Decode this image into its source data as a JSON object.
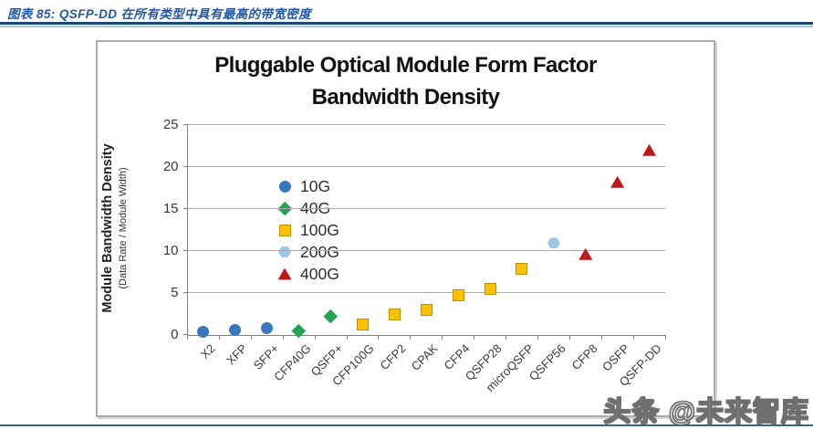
{
  "page": {
    "caption": "图表 85:  QSFP-DD 在所有类型中具有最高的带宽密度",
    "watermark": "头条 @未来智库"
  },
  "colors": {
    "caption_blue": "#2057A7",
    "rule_dark": "#1B4677",
    "rule_light": "#A9CBEC",
    "rule_bottom": "#37629B",
    "gridline": "#ABABAB",
    "axis": "#7F7F7F",
    "series_10g": "#3878BE",
    "series_40g": "#21A352",
    "series_100g_fill": "#FFC000",
    "series_100g_border": "#BF9000",
    "series_200g": "#9DC3E6",
    "series_400g": "#C11718"
  },
  "chart_data": {
    "type": "scatter",
    "title_lines": [
      "Pluggable Optical Module Form Factor",
      "Bandwidth Density"
    ],
    "ylabel_main": "Module Bandwidth Density",
    "ylabel_sub": "(Data Rate / Module Width)",
    "xlabel": "",
    "ylim": [
      0,
      25
    ],
    "yticks": [
      0,
      5,
      10,
      15,
      20,
      25
    ],
    "grid": true,
    "legend_position": "inside-left",
    "categories": [
      "X2",
      "XFP",
      "SFP+",
      "CFP40G",
      "QSFP+",
      "CFP100G",
      "CFP2",
      "CPAK",
      "CFP4",
      "QSFP28",
      "microQSFP",
      "QSFP56",
      "CFP8",
      "OSFP",
      "QSFP-DD"
    ],
    "series": [
      {
        "name": "10G",
        "marker": "circle",
        "color": "#3878BE"
      },
      {
        "name": "40G",
        "marker": "diamond",
        "color": "#21A352"
      },
      {
        "name": "100G",
        "marker": "square",
        "color": "#FFC000",
        "border": "#BF9000"
      },
      {
        "name": "200G",
        "marker": "hexagon",
        "color": "#9DC3E6"
      },
      {
        "name": "400G",
        "marker": "triangle",
        "color": "#C11718"
      }
    ],
    "points": [
      {
        "category": "X2",
        "series": "10G",
        "value": 0.28
      },
      {
        "category": "XFP",
        "series": "10G",
        "value": 0.54
      },
      {
        "category": "SFP+",
        "series": "10G",
        "value": 0.73
      },
      {
        "category": "CFP40G",
        "series": "40G",
        "value": 0.49
      },
      {
        "category": "QSFP+",
        "series": "40G",
        "value": 2.18
      },
      {
        "category": "CFP100G",
        "series": "100G",
        "value": 1.22
      },
      {
        "category": "CFP2",
        "series": "100G",
        "value": 2.41
      },
      {
        "category": "CPAK",
        "series": "100G",
        "value": 2.9
      },
      {
        "category": "CFP4",
        "series": "100G",
        "value": 4.65
      },
      {
        "category": "QSFP28",
        "series": "100G",
        "value": 5.45
      },
      {
        "category": "microQSFP",
        "series": "100G",
        "value": 7.87
      },
      {
        "category": "QSFP56",
        "series": "200G",
        "value": 10.9
      },
      {
        "category": "CFP8",
        "series": "400G",
        "value": 9.6
      },
      {
        "category": "OSFP",
        "series": "400G",
        "value": 18.2
      },
      {
        "category": "QSFP-DD",
        "series": "400G",
        "value": 22.0
      }
    ]
  }
}
